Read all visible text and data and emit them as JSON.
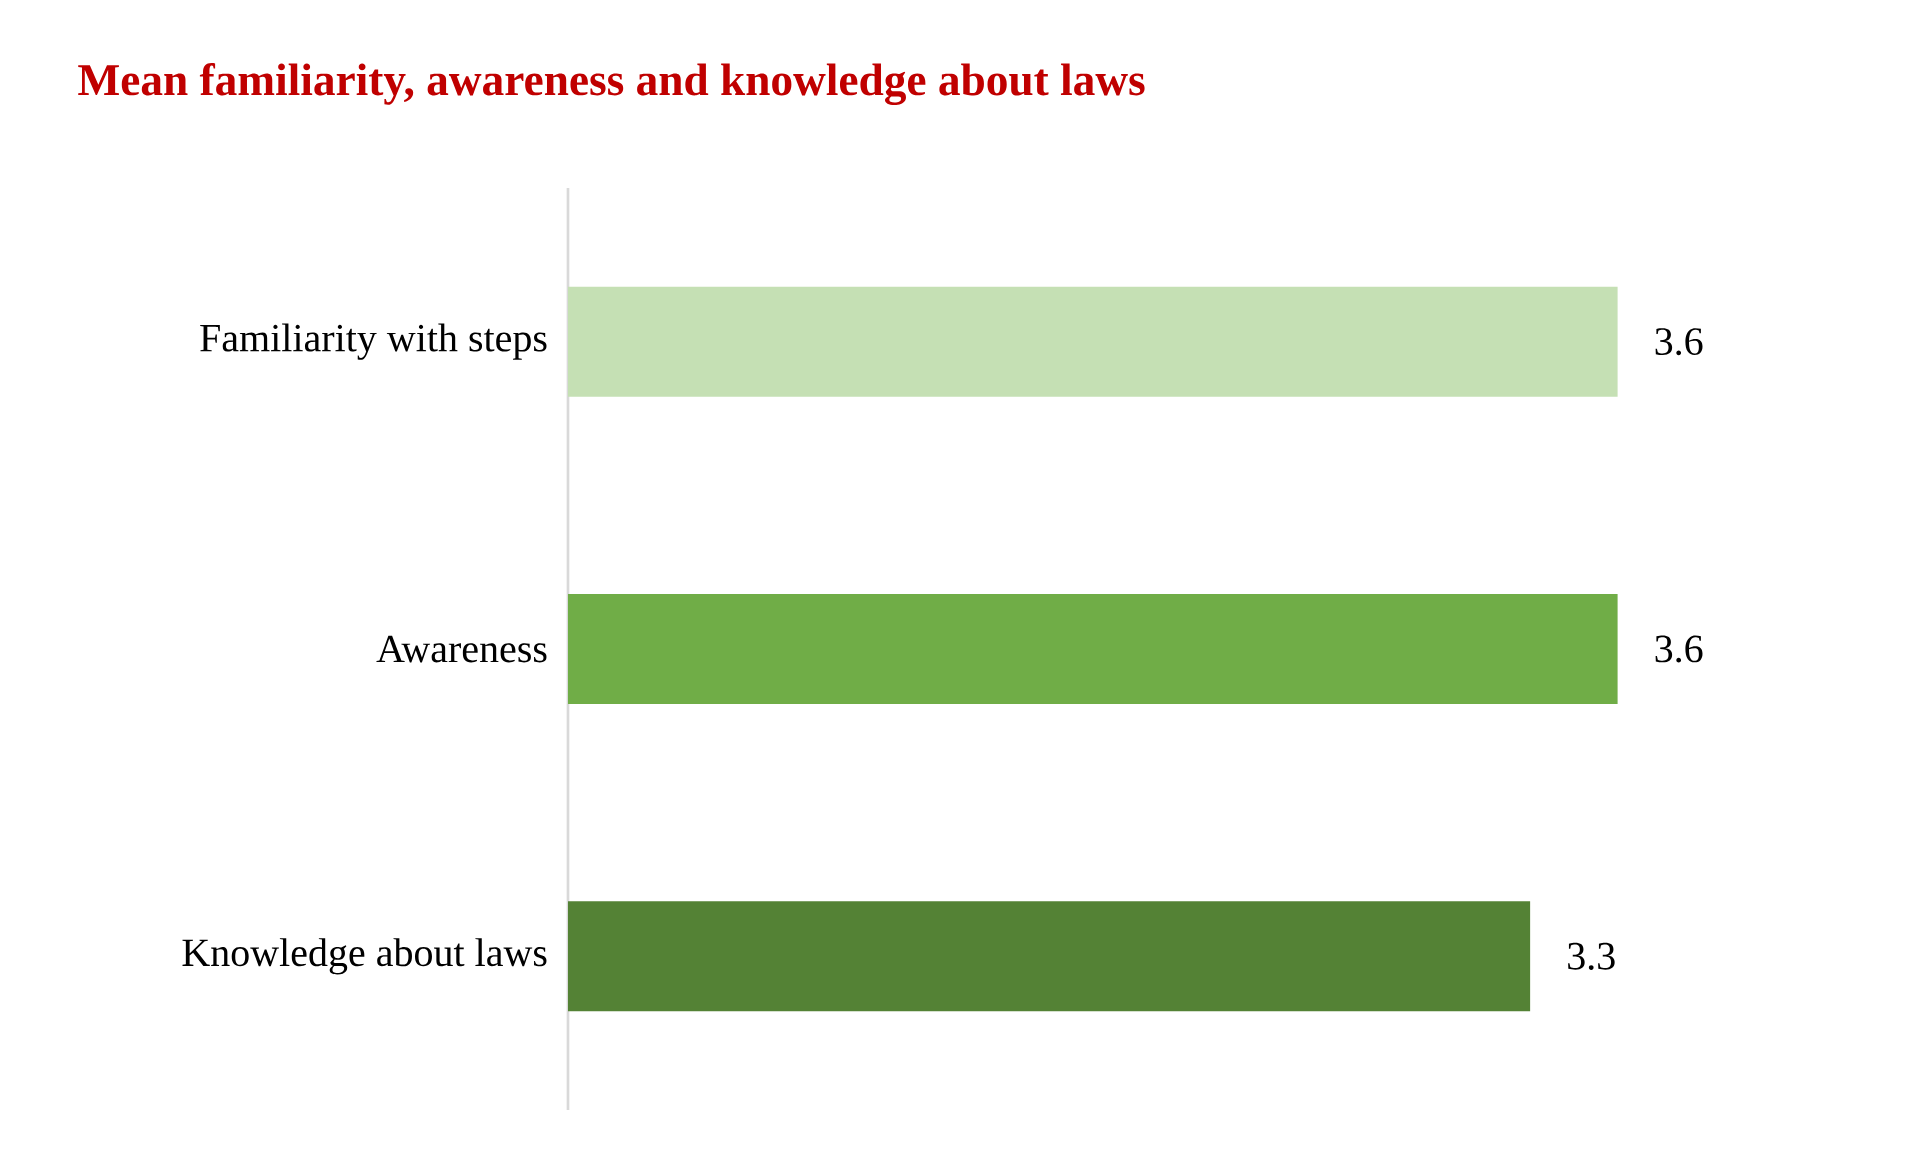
{
  "chart_data": {
    "type": "bar",
    "orientation": "horizontal",
    "title": "Mean familiarity, awareness and knowledge about laws",
    "categories": [
      "Familiarity with steps",
      "Awareness",
      "Knowledge about laws"
    ],
    "values": [
      3.6,
      3.6,
      3.3
    ],
    "colors": [
      "#c5e0b4",
      "#70ad47",
      "#548235"
    ],
    "data_labels": true
  }
}
